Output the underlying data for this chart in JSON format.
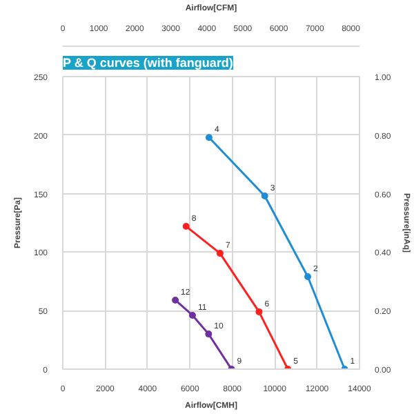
{
  "chart_data": {
    "type": "line",
    "title": "P & Q curves (with fanguard)",
    "xlabel": "Airflow[CMH]",
    "ylabel": "Pressure[Pa]",
    "x2label": "Airflow[CFM]",
    "y2label": "Pressure[inAq]",
    "xlim": [
      0,
      14000
    ],
    "xticks": [
      0,
      2000,
      4000,
      6000,
      8000,
      10000,
      12000,
      14000
    ],
    "ylim": [
      0,
      250
    ],
    "yticks": [
      0,
      50,
      100,
      150,
      200,
      250
    ],
    "x2lim": [
      0,
      8240
    ],
    "x2ticks": [
      0,
      1000,
      2000,
      3000,
      4000,
      5000,
      6000,
      7000,
      8000
    ],
    "y2lim": [
      0,
      1.0
    ],
    "y2ticks": [
      {
        "value": 0,
        "label": "0.00"
      },
      {
        "value": 0.2,
        "label": "0.20"
      },
      {
        "value": 0.4,
        "label": "0.40"
      },
      {
        "value": 0.6,
        "label": "0.60"
      },
      {
        "value": 0.8,
        "label": "0.80"
      },
      {
        "value": 1.0,
        "label": "1.00"
      }
    ],
    "grid": true,
    "marker": "circle",
    "line_style": "solid",
    "series": [
      {
        "color": "#1f8dd6",
        "x": [
          6900,
          9530,
          11560,
          13300
        ],
        "values": [
          198,
          148,
          79,
          0
        ]
      },
      {
        "color": "#ff2020",
        "x": [
          5820,
          7420,
          9260,
          10620
        ],
        "values": [
          122,
          99,
          49,
          0
        ]
      },
      {
        "color": "#7030a0",
        "x": [
          5310,
          6120,
          6880,
          7960
        ],
        "values": [
          59,
          46,
          30,
          0
        ]
      }
    ],
    "annotations": [
      {
        "text": "1",
        "x": 13300,
        "y": 0
      },
      {
        "text": "2",
        "x": 11560,
        "y": 79
      },
      {
        "text": "3",
        "x": 9530,
        "y": 148
      },
      {
        "text": "4",
        "x": 6900,
        "y": 198
      },
      {
        "text": "5",
        "x": 10620,
        "y": 0
      },
      {
        "text": "6",
        "x": 9260,
        "y": 49
      },
      {
        "text": "7",
        "x": 7420,
        "y": 99
      },
      {
        "text": "8",
        "x": 5820,
        "y": 122
      },
      {
        "text": "9",
        "x": 7960,
        "y": 0
      },
      {
        "text": "10",
        "x": 6880,
        "y": 30
      },
      {
        "text": "11",
        "x": 6120,
        "y": 46
      },
      {
        "text": "12",
        "x": 5310,
        "y": 59
      }
    ]
  }
}
